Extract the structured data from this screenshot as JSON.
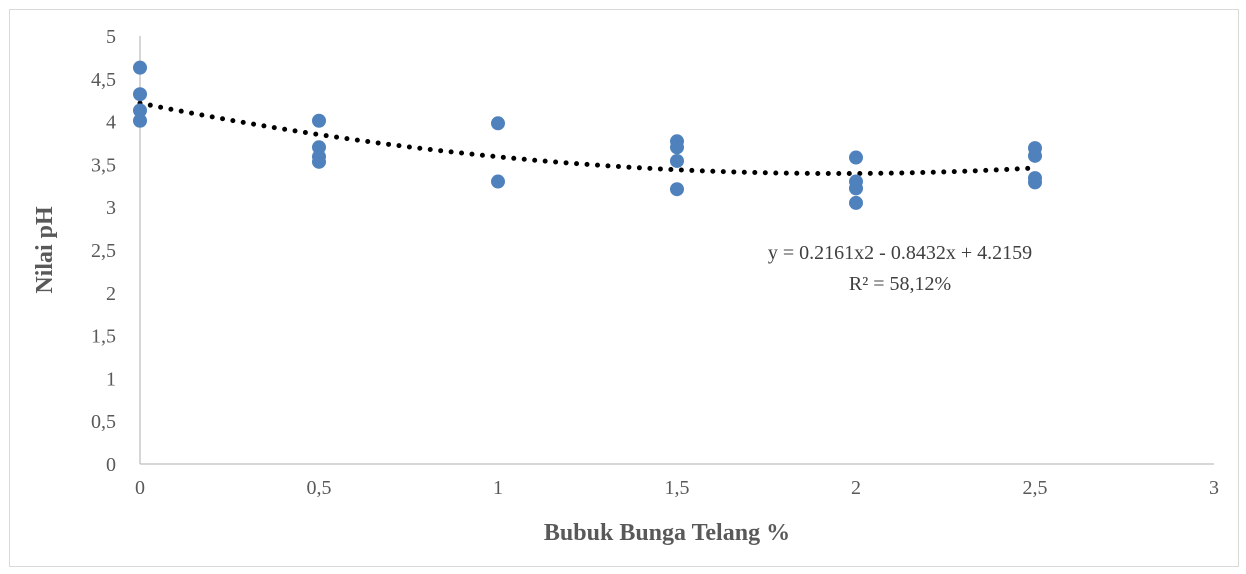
{
  "chart_data": {
    "type": "scatter",
    "title": "",
    "xlabel": "Bubuk Bunga Telang %",
    "ylabel": "Nilai pH",
    "xlim": [
      0,
      3
    ],
    "ylim": [
      0,
      5
    ],
    "x_ticks": [
      "0",
      "0,5",
      "1",
      "1,5",
      "2",
      "2,5",
      "3"
    ],
    "y_ticks": [
      "0",
      "0,5",
      "1",
      "1,5",
      "2",
      "2,5",
      "3",
      "3,5",
      "4",
      "4,5",
      "5"
    ],
    "grid": false,
    "legend": "none",
    "marker_color": "#4f81bd",
    "trendline_color": "#000000",
    "trendline": {
      "type": "polynomial",
      "coefficients": [
        0.2161,
        -0.8432,
        4.2159
      ],
      "equation_text": "y = 0.2161x2 - 0.8432x + 4.2159",
      "r2_text": "R² = 58,12%"
    },
    "points": [
      {
        "x": 0,
        "y": 4.63
      },
      {
        "x": 0,
        "y": 4.32
      },
      {
        "x": 0,
        "y": 4.13
      },
      {
        "x": 0,
        "y": 4.01
      },
      {
        "x": 0.5,
        "y": 4.01
      },
      {
        "x": 0.5,
        "y": 3.7
      },
      {
        "x": 0.5,
        "y": 3.59
      },
      {
        "x": 0.5,
        "y": 3.53
      },
      {
        "x": 1,
        "y": 3.98
      },
      {
        "x": 1,
        "y": 3.3
      },
      {
        "x": 1.5,
        "y": 3.77
      },
      {
        "x": 1.5,
        "y": 3.7
      },
      {
        "x": 1.5,
        "y": 3.54
      },
      {
        "x": 1.5,
        "y": 3.21
      },
      {
        "x": 2,
        "y": 3.58
      },
      {
        "x": 2,
        "y": 3.3
      },
      {
        "x": 2,
        "y": 3.22
      },
      {
        "x": 2,
        "y": 3.05
      },
      {
        "x": 2.5,
        "y": 3.69
      },
      {
        "x": 2.5,
        "y": 3.6
      },
      {
        "x": 2.5,
        "y": 3.34
      },
      {
        "x": 2.5,
        "y": 3.29
      }
    ]
  }
}
